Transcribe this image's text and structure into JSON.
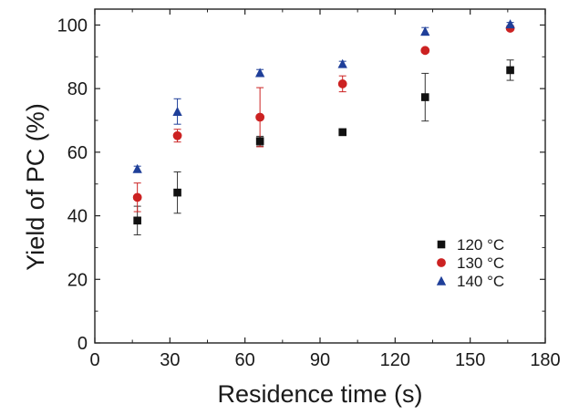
{
  "chart_data": {
    "type": "scatter",
    "title": "",
    "xlabel": "Residence time (s)",
    "ylabel": "Yield of PC (%)",
    "xlim": [
      0,
      180
    ],
    "ylim": [
      0,
      105
    ],
    "xticks": [
      0,
      30,
      60,
      90,
      120,
      150,
      180
    ],
    "yticks": [
      0,
      20,
      40,
      60,
      80,
      100
    ],
    "xtick_labels": [
      "0",
      "30",
      "60",
      "90",
      "120",
      "150",
      "180"
    ],
    "ytick_labels": [
      "0",
      "20",
      "40",
      "60",
      "80",
      "100"
    ],
    "grid": false,
    "legend_position": "lower-right",
    "series": [
      {
        "name": "120 °C",
        "marker": "square",
        "color": "#111111",
        "errorbar_color": "#333333",
        "points": [
          {
            "x": 17,
            "y": 38.5,
            "err": 4.5
          },
          {
            "x": 33,
            "y": 47.3,
            "err": 6.5
          },
          {
            "x": 66,
            "y": 63.5,
            "err": 1.5
          },
          {
            "x": 99,
            "y": 66.3,
            "err": 0
          },
          {
            "x": 132,
            "y": 77.3,
            "err": 7.5
          },
          {
            "x": 166,
            "y": 85.8,
            "err": 3.2
          }
        ]
      },
      {
        "name": "130 °C",
        "marker": "circle",
        "color": "#cc2222",
        "errorbar_color": "#cc2222",
        "points": [
          {
            "x": 17,
            "y": 45.8,
            "err": 4.5
          },
          {
            "x": 33,
            "y": 65.2,
            "err": 2.0
          },
          {
            "x": 66,
            "y": 71.0,
            "err": 9.3
          },
          {
            "x": 99,
            "y": 81.5,
            "err": 2.5
          },
          {
            "x": 132,
            "y": 92.0,
            "err": 0
          },
          {
            "x": 166,
            "y": 99.0,
            "err": 0
          }
        ]
      },
      {
        "name": "140 °C",
        "marker": "triangle",
        "color": "#1f3f99",
        "errorbar_color": "#1f3f99",
        "points": [
          {
            "x": 17,
            "y": 54.8,
            "err": 0.8
          },
          {
            "x": 33,
            "y": 72.8,
            "err": 4.0
          },
          {
            "x": 66,
            "y": 85.0,
            "err": 1.0
          },
          {
            "x": 99,
            "y": 87.8,
            "err": 0.8
          },
          {
            "x": 132,
            "y": 98.0,
            "err": 1.2
          },
          {
            "x": 166,
            "y": 100.3,
            "err": 0.5
          }
        ]
      }
    ]
  }
}
